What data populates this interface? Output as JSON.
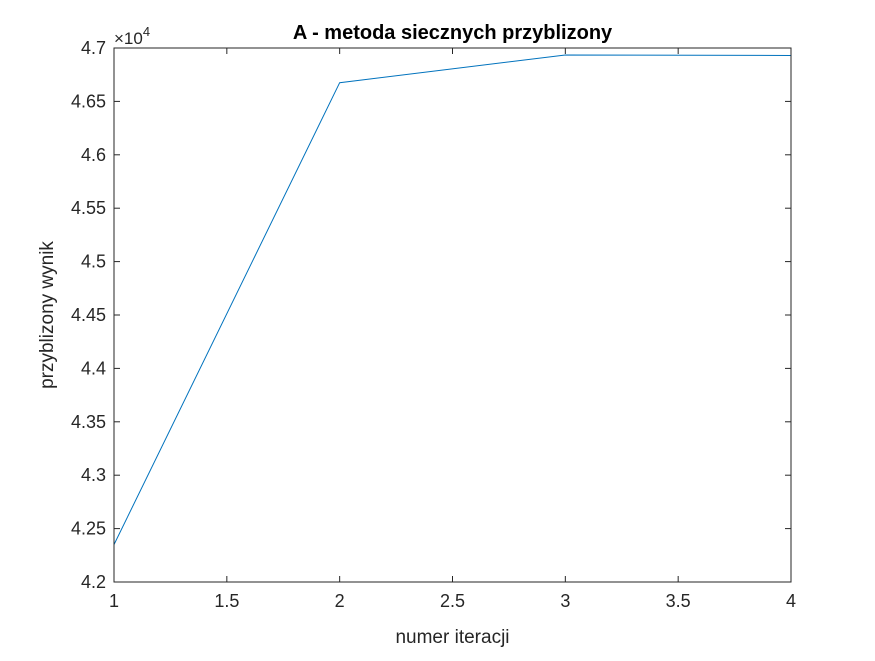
{
  "chart_data": {
    "type": "line",
    "title": "A - metoda siecznych przyblizony",
    "xlabel": "numer iteracji",
    "ylabel": "przyblizony wynik",
    "exponent_prefix": "×10",
    "exponent_power": "4",
    "xlim": [
      1,
      4
    ],
    "ylim": [
      4.2,
      4.7
    ],
    "y_scale_factor": 10000,
    "x_ticks": [
      1,
      1.5,
      2,
      2.5,
      3,
      3.5,
      4
    ],
    "x_tick_labels": [
      "1",
      "1.5",
      "2",
      "2.5",
      "3",
      "3.5",
      "4"
    ],
    "y_ticks": [
      4.2,
      4.25,
      4.3,
      4.35,
      4.4,
      4.45,
      4.5,
      4.55,
      4.6,
      4.65,
      4.7
    ],
    "y_tick_labels": [
      "4.2",
      "4.25",
      "4.3",
      "4.35",
      "4.4",
      "4.45",
      "4.5",
      "4.55",
      "4.6",
      "4.65",
      "4.7"
    ],
    "grid": false,
    "series": [
      {
        "color": "#0072bd",
        "x": [
          1,
          2,
          3,
          4
        ],
        "y": [
          42350,
          46675,
          46935,
          46930
        ]
      }
    ]
  }
}
